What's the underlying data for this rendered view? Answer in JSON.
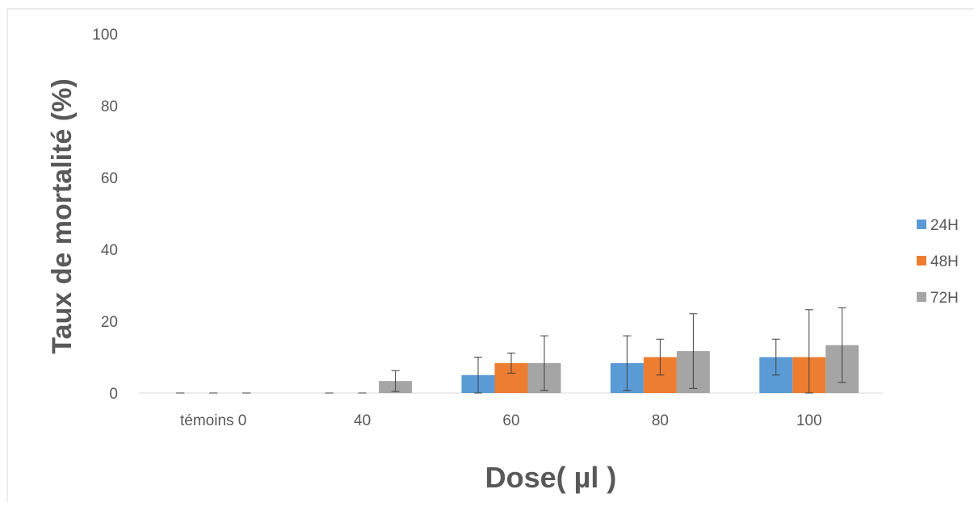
{
  "chart_data": {
    "type": "bar",
    "title": "",
    "xlabel": "Dose( µl )",
    "ylabel": "Taux de mortalité (%)",
    "ylim": [
      0,
      100
    ],
    "yticks": [
      0,
      20,
      40,
      60,
      80,
      100
    ],
    "grid": false,
    "legend_position": "right",
    "categories": [
      "témoins 0",
      "40",
      "60",
      "80",
      "100"
    ],
    "series": [
      {
        "name": "24H",
        "color": "#5B9BD5",
        "values": [
          0,
          0,
          5,
          8.33,
          10
        ],
        "errors": [
          0,
          0,
          5,
          7.6,
          5
        ]
      },
      {
        "name": "48H",
        "color": "#ED7D31",
        "values": [
          0,
          0,
          8.33,
          10,
          10
        ],
        "errors": [
          0,
          0,
          2.8,
          5,
          13.2
        ]
      },
      {
        "name": "72H",
        "color": "#A5A5A5",
        "values": [
          0,
          3.33,
          8.33,
          11.67,
          13.33
        ],
        "errors": [
          0,
          2.9,
          7.6,
          10.4,
          10.4
        ]
      }
    ]
  }
}
